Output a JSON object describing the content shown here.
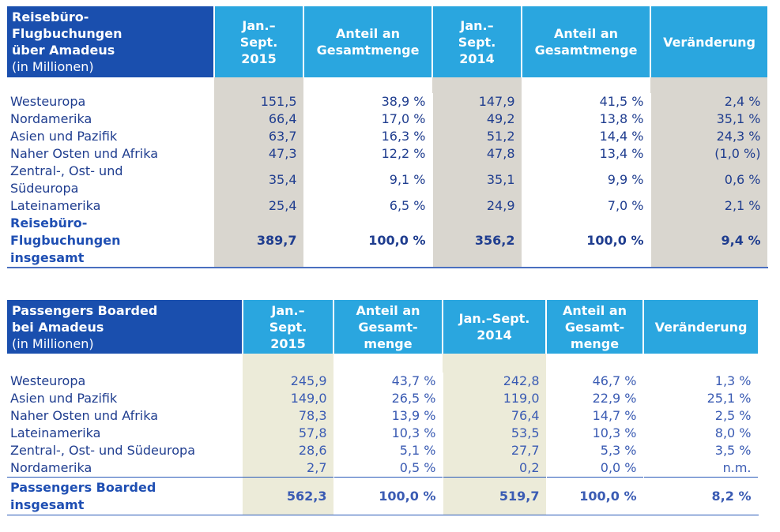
{
  "table1": {
    "header": {
      "title_lines": [
        "Reisebüro-",
        "Flugbuchungen",
        "über Amadeus"
      ],
      "unit": "(in Millionen)",
      "col_2015": [
        "Jan.–",
        "Sept.",
        "2015"
      ],
      "col_share_a": [
        "Anteil an",
        "Gesamtmenge"
      ],
      "col_2014": [
        "Jan.–",
        "Sept.",
        "2014"
      ],
      "col_share_b": [
        "Anteil an",
        "Gesamtmenge"
      ],
      "col_change": "Veränderung"
    },
    "rows": [
      {
        "label": [
          "Westeuropa"
        ],
        "v2015": "151,5",
        "s2015": "38,9 %",
        "v2014": "147,9",
        "s2014": "41,5 %",
        "change": "2,4 %"
      },
      {
        "label": [
          "Nordamerika"
        ],
        "v2015": "66,4",
        "s2015": "17,0 %",
        "v2014": "49,2",
        "s2014": "13,8 %",
        "change": "35,1 %"
      },
      {
        "label": [
          "Asien und Pazifik"
        ],
        "v2015": "63,7",
        "s2015": "16,3 %",
        "v2014": "51,2",
        "s2014": "14,4 %",
        "change": "24,3 %"
      },
      {
        "label": [
          "Naher Osten und Afrika"
        ],
        "v2015": "47,3",
        "s2015": "12,2 %",
        "v2014": "47,8",
        "s2014": "13,4 %",
        "change": "(1,0 %)"
      },
      {
        "label": [
          "Zentral-, Ost- und",
          "Südeuropa"
        ],
        "v2015": "35,4",
        "s2015": "9,1 %",
        "v2014": "35,1",
        "s2014": "9,9 %",
        "change": "0,6 %"
      },
      {
        "label": [
          "Lateinamerika"
        ],
        "v2015": "25,4",
        "s2015": "6,5 %",
        "v2014": "24,9",
        "s2014": "7,0 %",
        "change": "2,1 %"
      }
    ],
    "total": {
      "label": [
        "Reisebüro-",
        "Flugbuchungen",
        "insgesamt"
      ],
      "v2015": "389,7",
      "s2015": "100,0 %",
      "v2014": "356,2",
      "s2014": "100,0 %",
      "change": "9,4 %"
    }
  },
  "table2": {
    "header": {
      "title_lines": [
        "Passengers Boarded",
        "bei Amadeus"
      ],
      "unit": "(in Millionen)",
      "col_2015": [
        "Jan.–",
        "Sept.",
        "2015"
      ],
      "col_share_a": [
        "Anteil an",
        "Gesamt-",
        "menge"
      ],
      "col_2014": [
        "Jan.–Sept.",
        "2014"
      ],
      "col_share_b": [
        "Anteil an",
        "Gesamt-",
        "menge"
      ],
      "col_change": "Veränderung"
    },
    "rows": [
      {
        "label": [
          "Westeuropa"
        ],
        "v2015": "245,9",
        "s2015": "43,7 %",
        "v2014": "242,8",
        "s2014": "46,7 %",
        "change": "1,3 %"
      },
      {
        "label": [
          "Asien und Pazifik"
        ],
        "v2015": "149,0",
        "s2015": "26,5 %",
        "v2014": "119,0",
        "s2014": "22,9 %",
        "change": "25,1 %"
      },
      {
        "label": [
          "Naher Osten und Afrika"
        ],
        "v2015": "78,3",
        "s2015": "13,9 %",
        "v2014": "76,4",
        "s2014": "14,7 %",
        "change": "2,5 %"
      },
      {
        "label": [
          "Lateinamerika"
        ],
        "v2015": "57,8",
        "s2015": "10,3 %",
        "v2014": "53,5",
        "s2014": "10,3 %",
        "change": "8,0 %"
      },
      {
        "label": [
          "Zentral-, Ost- und Südeuropa"
        ],
        "v2015": "28,6",
        "s2015": "5,1 %",
        "v2014": "27,7",
        "s2014": "5,3 %",
        "change": "3,5 %"
      },
      {
        "label": [
          "Nordamerika"
        ],
        "v2015": "2,7",
        "s2015": "0,5 %",
        "v2014": "0,2",
        "s2014": "0,0 %",
        "change": "n.m."
      }
    ],
    "total": {
      "label": [
        "Passengers Boarded",
        "insgesamt"
      ],
      "v2015": "562,3",
      "s2015": "100,0 %",
      "v2014": "519,7",
      "s2014": "100,0 %",
      "change": "8,2 %"
    }
  }
}
